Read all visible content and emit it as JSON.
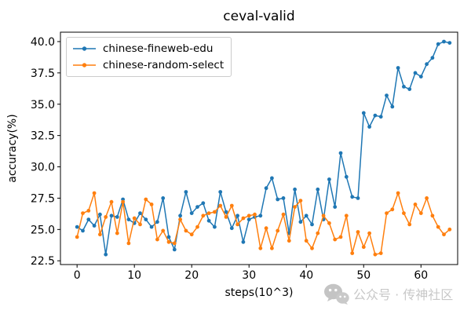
{
  "watermark": {
    "text": "公众号 · 传神社区",
    "icon": "wechat-logo",
    "color": "#c8c8c8"
  },
  "chart_data": {
    "type": "line",
    "title": "ceval-valid",
    "xlabel": "steps(10^3)",
    "ylabel": "accuracy(%)",
    "xlim": [
      -2.9,
      66.4
    ],
    "ylim": [
      22.2,
      40.75
    ],
    "xticks": [
      0,
      10,
      20,
      30,
      40,
      50,
      60
    ],
    "xtick_labels": [
      "0",
      "10",
      "20",
      "30",
      "40",
      "50",
      "60"
    ],
    "yticks": [
      22.5,
      25.0,
      27.5,
      30.0,
      32.5,
      35.0,
      37.5,
      40.0
    ],
    "ytick_labels": [
      "22.5",
      "25.0",
      "27.5",
      "30.0",
      "32.5",
      "35.0",
      "37.5",
      "40.0"
    ],
    "grid": false,
    "legend_position": "upper-left",
    "marker": "circle",
    "x": [
      0,
      1,
      2,
      3,
      4,
      5,
      6,
      7,
      8,
      9,
      10,
      11,
      12,
      13,
      14,
      15,
      16,
      17,
      18,
      19,
      20,
      21,
      22,
      23,
      24,
      25,
      26,
      27,
      28,
      29,
      30,
      31,
      32,
      33,
      34,
      35,
      36,
      37,
      38,
      39,
      40,
      41,
      42,
      43,
      44,
      45,
      46,
      47,
      48,
      49,
      50,
      51,
      52,
      53,
      54,
      55,
      56,
      57,
      58,
      59,
      60,
      61,
      62,
      63,
      64,
      65
    ],
    "series": [
      {
        "name": "chinese-fineweb-edu",
        "color": "#1f77b4",
        "values": [
          25.2,
          24.9,
          25.8,
          25.3,
          26.2,
          23.0,
          26.1,
          26.0,
          27.4,
          25.8,
          25.5,
          26.3,
          25.8,
          25.2,
          25.6,
          27.5,
          24.4,
          23.4,
          26.1,
          28.0,
          26.3,
          26.8,
          27.1,
          25.7,
          25.2,
          28.0,
          26.4,
          25.1,
          26.1,
          24.0,
          25.8,
          26.0,
          26.1,
          28.3,
          29.1,
          27.4,
          27.5,
          24.7,
          28.2,
          25.6,
          26.1,
          25.4,
          28.2,
          25.8,
          29.0,
          26.8,
          31.1,
          29.2,
          27.6,
          27.5,
          34.3,
          33.2,
          34.1,
          34.0,
          35.7,
          34.8,
          37.9,
          36.4,
          36.2,
          37.5,
          37.2,
          38.2,
          38.7,
          39.8,
          40.0,
          39.9
        ]
      },
      {
        "name": "chinese-random-select",
        "color": "#ff7f0e",
        "values": [
          24.4,
          26.3,
          26.5,
          27.9,
          24.6,
          26.0,
          27.2,
          24.7,
          27.2,
          23.9,
          25.9,
          25.4,
          27.4,
          27.0,
          24.2,
          24.9,
          24.0,
          23.9,
          25.8,
          24.9,
          24.6,
          25.2,
          26.1,
          26.3,
          26.4,
          26.9,
          26.0,
          26.9,
          25.4,
          25.9,
          26.1,
          26.2,
          23.5,
          25.1,
          23.5,
          24.9,
          26.2,
          24.1,
          26.8,
          27.3,
          24.1,
          23.5,
          24.7,
          26.1,
          25.5,
          24.2,
          24.4,
          26.1,
          23.1,
          24.8,
          23.6,
          24.7,
          23.0,
          23.1,
          26.3,
          26.6,
          27.9,
          26.3,
          25.4,
          27.0,
          26.3,
          27.5,
          26.1,
          25.2,
          24.6,
          25.0
        ]
      }
    ]
  }
}
